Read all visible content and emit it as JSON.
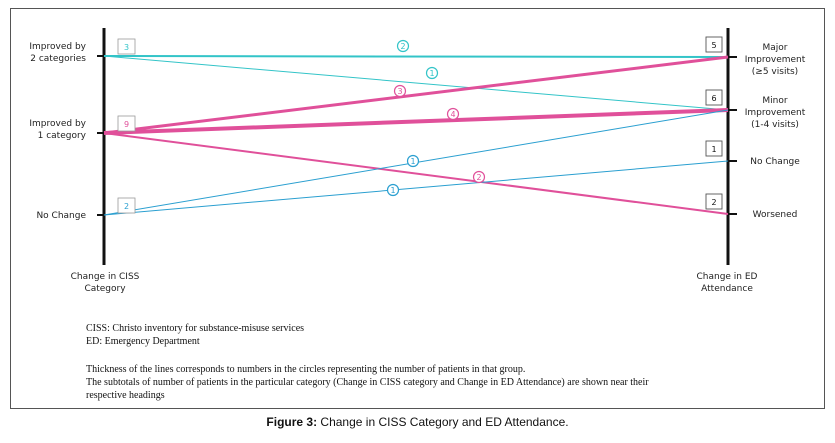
{
  "left_axis": {
    "title_lines": [
      "Change in CISS",
      "Category"
    ],
    "nodes": [
      {
        "id": "imp2",
        "label_lines": [
          "Improved by",
          "2 categories"
        ],
        "subtotal": "3",
        "color": "#33c4c8"
      },
      {
        "id": "imp1",
        "label_lines": [
          "Improved by",
          "1 category"
        ],
        "subtotal": "9",
        "color": "#e0509a"
      },
      {
        "id": "nochg",
        "label_lines": [
          "No Change"
        ],
        "subtotal": "2",
        "color": "#2a9fd0"
      }
    ]
  },
  "right_axis": {
    "title_lines": [
      "Change in ED",
      "Attendance"
    ],
    "nodes": [
      {
        "id": "major",
        "label_lines": [
          "Major",
          "Improvement",
          "(≥5 visits)"
        ],
        "subtotal": "5"
      },
      {
        "id": "minor",
        "label_lines": [
          "Minor",
          "Improvement",
          "(1-4 visits)"
        ],
        "subtotal": "6"
      },
      {
        "id": "nochange",
        "label_lines": [
          "No Change"
        ],
        "subtotal": "1"
      },
      {
        "id": "worse",
        "label_lines": [
          "Worsened"
        ],
        "subtotal": "2"
      }
    ]
  },
  "flows": [
    {
      "from": "imp2",
      "to": "major",
      "count": "2",
      "color": "#33c4c8"
    },
    {
      "from": "imp2",
      "to": "minor",
      "count": "1",
      "color": "#33c4c8"
    },
    {
      "from": "imp1",
      "to": "major",
      "count": "3",
      "color": "#e0509a"
    },
    {
      "from": "imp1",
      "to": "minor",
      "count": "4",
      "color": "#e0509a"
    },
    {
      "from": "imp1",
      "to": "worse",
      "count": "2",
      "color": "#e0509a"
    },
    {
      "from": "nochg",
      "to": "minor",
      "count": "1",
      "color": "#2a9fd0"
    },
    {
      "from": "nochg",
      "to": "nochange",
      "count": "1",
      "color": "#2a9fd0"
    }
  ],
  "notes": {
    "abbrev": [
      "CISS: Christo inventory for substance-misuse services",
      "ED: Emergency Department"
    ],
    "explanation": [
      "Thickness of the lines corresponds to numbers in the circles representing the number of patients in that group.",
      "The subtotals of number of patients in the particular category (Change in CISS category and Change in ED Attendance) are shown near their",
      "respective headings"
    ]
  },
  "caption": {
    "label": "Figure 3:",
    "text": "Change in CISS Category and ED Attendance."
  }
}
